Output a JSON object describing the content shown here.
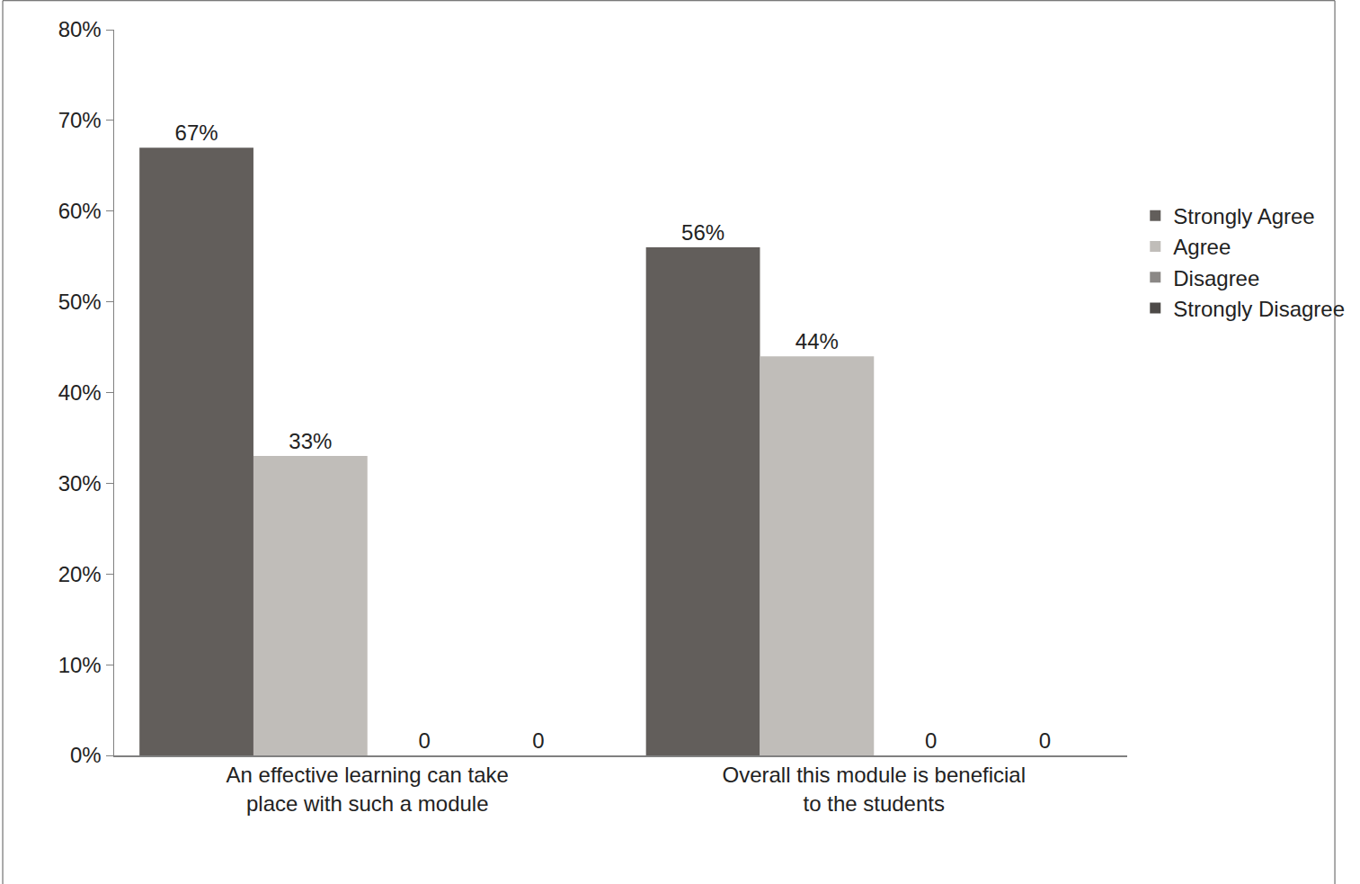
{
  "chart_data": {
    "type": "bar",
    "categories": [
      "An effective learning can take place with such a module",
      "Overall this module is beneficial to the students"
    ],
    "series": [
      {
        "name": "Strongly Agree",
        "color": "#625e5b",
        "values": [
          67,
          56
        ],
        "value_labels": [
          "67%",
          "56%"
        ]
      },
      {
        "name": "Agree",
        "color": "#c0bdb9",
        "values": [
          33,
          44
        ],
        "value_labels": [
          "33%",
          "44%"
        ]
      },
      {
        "name": "Disagree",
        "color": "#8b8886",
        "values": [
          0,
          0
        ],
        "value_labels": [
          "0",
          "0"
        ]
      },
      {
        "name": "Strongly Disagree",
        "color": "#4d4a48",
        "values": [
          0,
          0
        ],
        "value_labels": [
          "0",
          "0"
        ]
      }
    ],
    "ylim": [
      0,
      80
    ],
    "yticks": [
      {
        "value": 0,
        "label": "0%"
      },
      {
        "value": 10,
        "label": "10%"
      },
      {
        "value": 20,
        "label": "20%"
      },
      {
        "value": 30,
        "label": "30%"
      },
      {
        "value": 40,
        "label": "40%"
      },
      {
        "value": 50,
        "label": "50%"
      },
      {
        "value": 60,
        "label": "60%"
      },
      {
        "value": 70,
        "label": "70%"
      },
      {
        "value": 80,
        "label": "80%"
      }
    ],
    "grid": false,
    "legend": "right",
    "data_labels": true
  }
}
